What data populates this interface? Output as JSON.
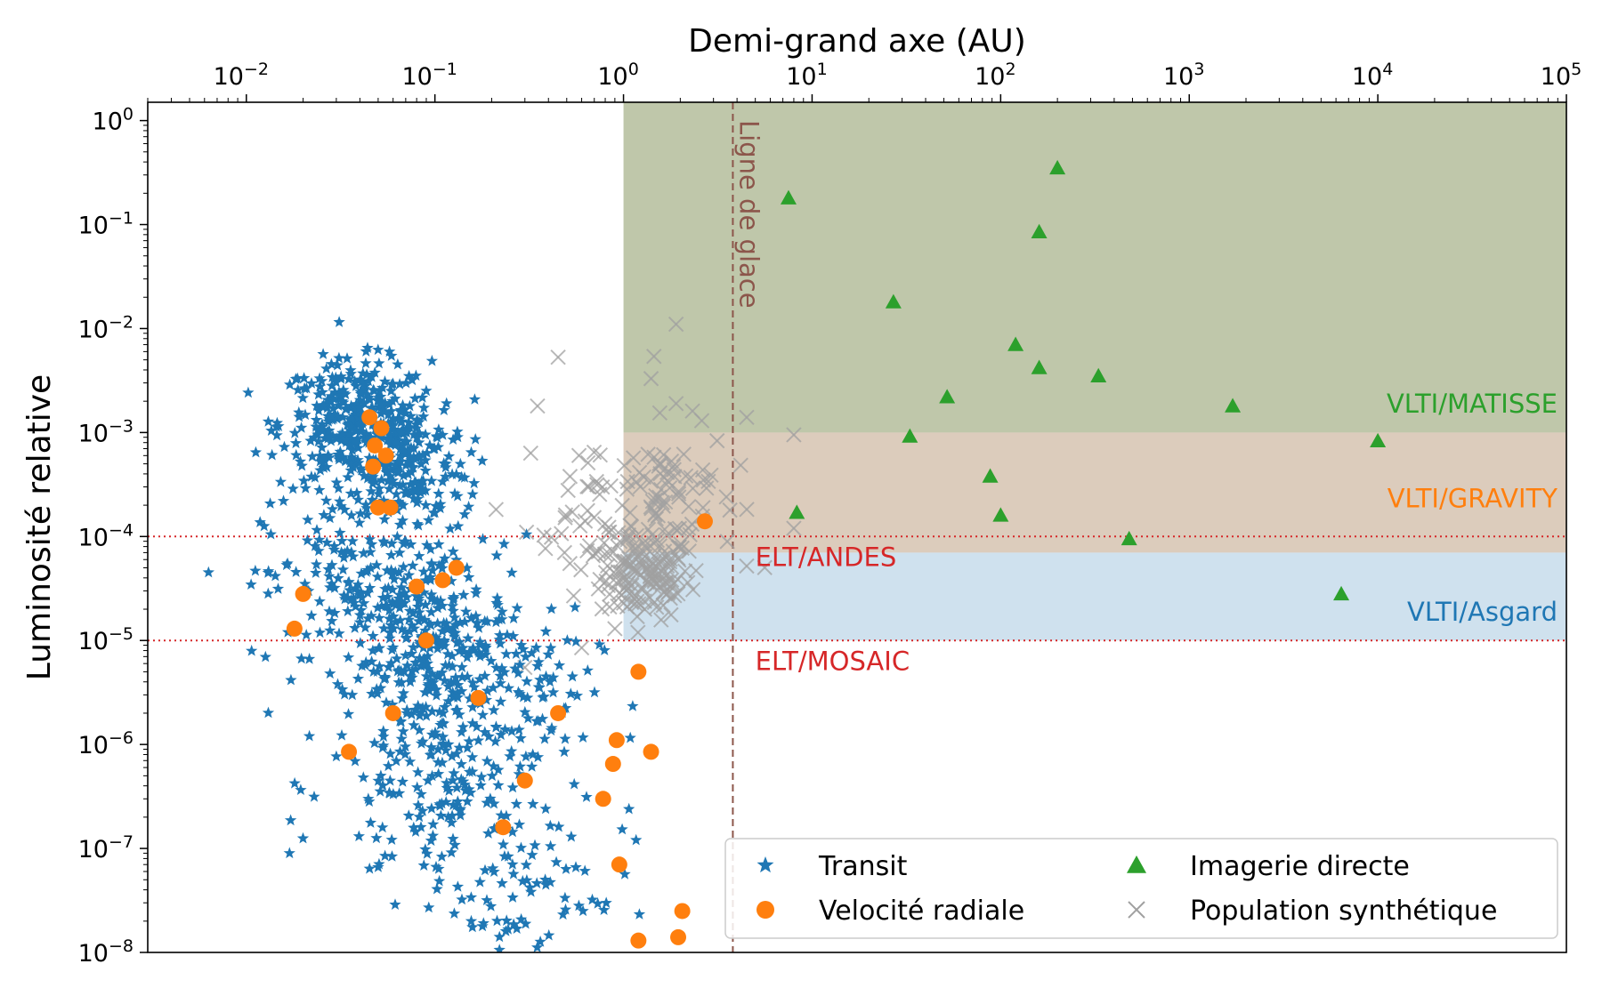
{
  "chart_data": {
    "type": "scatter",
    "title": "",
    "xlabel": "Demi-grand axe (AU)",
    "ylabel": "Luminosité relative",
    "xscale": "log",
    "yscale": "log",
    "xlim": [
      0.003,
      100000
    ],
    "ylim": [
      1e-08,
      1.5
    ],
    "x_axis_position": "top",
    "grid": false,
    "x_ticks": [
      {
        "value": 0.01,
        "base": "10",
        "exp": "−2"
      },
      {
        "value": 0.1,
        "base": "10",
        "exp": "−1"
      },
      {
        "value": 1,
        "base": "10",
        "exp": "0"
      },
      {
        "value": 10,
        "base": "10",
        "exp": "1"
      },
      {
        "value": 100,
        "base": "10",
        "exp": "2"
      },
      {
        "value": 1000,
        "base": "10",
        "exp": "3"
      },
      {
        "value": 10000,
        "base": "10",
        "exp": "4"
      },
      {
        "value": 100000,
        "base": "10",
        "exp": "5"
      }
    ],
    "y_ticks": [
      {
        "value": 1,
        "base": "10",
        "exp": "0"
      },
      {
        "value": 0.1,
        "base": "10",
        "exp": "−1"
      },
      {
        "value": 0.01,
        "base": "10",
        "exp": "−2"
      },
      {
        "value": 0.001,
        "base": "10",
        "exp": "−3"
      },
      {
        "value": 0.0001,
        "base": "10",
        "exp": "−4"
      },
      {
        "value": 1e-05,
        "base": "10",
        "exp": "−5"
      },
      {
        "value": 1e-06,
        "base": "10",
        "exp": "−6"
      },
      {
        "value": 1e-07,
        "base": "10",
        "exp": "−7"
      },
      {
        "value": 1e-08,
        "base": "10",
        "exp": "−8"
      }
    ],
    "regions": [
      {
        "label": "VLTI/MATISSE",
        "x_min": 1,
        "x_max": 100000,
        "y_min": 0.001,
        "y_max": 1.5,
        "fill": "#7f8f55",
        "opacity": 0.5,
        "label_color": "#2ca02c",
        "label_anchor": [
          0.45,
          0.00155
        ]
      },
      {
        "label": "VLTI/GRAVITY",
        "x_min": 1,
        "x_max": 100000,
        "y_min": 7e-05,
        "y_max": 0.001,
        "fill": "#b9997a",
        "opacity": 0.5,
        "label_color": "#ff7f0e",
        "label_anchor": [
          0.45,
          0.00019
        ]
      },
      {
        "label": "VLTI/Asgard",
        "x_min": 1,
        "x_max": 100000,
        "y_min": 1e-05,
        "y_max": 7e-05,
        "fill": "#a8c8e0",
        "opacity": 0.55,
        "label_color": "#1f77b4",
        "label_anchor": [
          0.45,
          1.55e-05
        ]
      }
    ],
    "hlines": [
      {
        "label": "ELT/ANDES",
        "y": 0.0001,
        "color": "#d62728",
        "label_x": 5,
        "label_y": 5.2e-05
      },
      {
        "label": "ELT/MOSAIC",
        "y": 1e-05,
        "color": "#d62728",
        "label_x": 5,
        "label_y": 5.2e-06
      }
    ],
    "vlines": [
      {
        "label": "Ligne de glace",
        "x": 3.8,
        "color": "#8c564b"
      }
    ],
    "series": [
      {
        "name": "Transit",
        "marker": "star",
        "color": "#1f77b4",
        "clusters": [
          {
            "x_center": 0.038,
            "y_center": 0.0012,
            "x_spread": 0.2,
            "y_spread": 0.3,
            "count": 340
          },
          {
            "x_center": 0.07,
            "y_center": 0.0005,
            "x_spread": 0.17,
            "y_spread": 0.3,
            "count": 160
          },
          {
            "x_center": 0.05,
            "y_center": 3e-05,
            "x_spread": 0.3,
            "y_spread": 0.45,
            "count": 230
          },
          {
            "x_center": 0.11,
            "y_center": 6e-06,
            "x_spread": 0.25,
            "y_spread": 0.4,
            "count": 240
          },
          {
            "x_center": 0.12,
            "y_center": 4e-07,
            "x_spread": 0.32,
            "y_spread": 0.55,
            "count": 190
          },
          {
            "x_center": 0.3,
            "y_center": 4e-08,
            "x_spread": 0.28,
            "y_spread": 0.4,
            "count": 70
          },
          {
            "x_center": 0.3,
            "y_center": 3e-06,
            "x_spread": 0.2,
            "y_spread": 0.4,
            "count": 40
          }
        ]
      },
      {
        "name": "Velocité radiale",
        "marker": "circle",
        "color": "#ff7f0e",
        "points": [
          [
            0.045,
            0.0014
          ],
          [
            0.052,
            0.0011
          ],
          [
            0.048,
            0.00075
          ],
          [
            0.055,
            0.0006
          ],
          [
            0.047,
            0.00047
          ],
          [
            0.05,
            0.00019
          ],
          [
            0.058,
            0.00019
          ],
          [
            0.02,
            2.8e-05
          ],
          [
            0.018,
            1.3e-05
          ],
          [
            0.08,
            3.3e-05
          ],
          [
            0.11,
            3.8e-05
          ],
          [
            0.13,
            5e-05
          ],
          [
            0.09,
            1e-05
          ],
          [
            0.06,
            2e-06
          ],
          [
            0.035,
            8.5e-07
          ],
          [
            0.17,
            2.8e-06
          ],
          [
            0.45,
            2e-06
          ],
          [
            0.3,
            4.5e-07
          ],
          [
            0.23,
            1.6e-07
          ],
          [
            0.92,
            1.1e-06
          ],
          [
            0.88,
            6.5e-07
          ],
          [
            1.4,
            8.5e-07
          ],
          [
            0.78,
            3e-07
          ],
          [
            0.95,
            7e-08
          ],
          [
            1.2,
            5e-06
          ],
          [
            2.7,
            0.00014
          ],
          [
            2.05,
            2.5e-08
          ],
          [
            1.2,
            1.3e-08
          ],
          [
            1.95,
            1.4e-08
          ]
        ]
      },
      {
        "name": "Imagerie directe",
        "marker": "triangle",
        "color": "#2ca02c",
        "points": [
          [
            7.5,
            0.18
          ],
          [
            200,
            0.35
          ],
          [
            160,
            0.085
          ],
          [
            27,
            0.018
          ],
          [
            120,
            0.007
          ],
          [
            160,
            0.0042
          ],
          [
            330,
            0.0035
          ],
          [
            52,
            0.0022
          ],
          [
            1700,
            0.0018
          ],
          [
            33,
            0.00092
          ],
          [
            10000,
            0.00083
          ],
          [
            88,
            0.00038
          ],
          [
            8.3,
            0.00017
          ],
          [
            100,
            0.00016
          ],
          [
            480,
            9.5e-05
          ],
          [
            6400,
            2.8e-05
          ]
        ]
      },
      {
        "name": "Population synthétique",
        "marker": "x",
        "color": "#a0a0a0",
        "clusters": [
          {
            "x_center": 1.3,
            "y_center": 4e-05,
            "x_spread": 0.12,
            "y_spread": 0.2,
            "count": 130
          },
          {
            "x_center": 1.6,
            "y_center": 0.00025,
            "x_spread": 0.2,
            "y_spread": 0.35,
            "count": 90
          },
          {
            "x_center": 0.7,
            "y_center": 0.00015,
            "x_spread": 0.18,
            "y_spread": 0.35,
            "count": 40
          }
        ],
        "points": [
          [
            0.45,
            0.0053
          ],
          [
            0.35,
            0.0018
          ],
          [
            1.9,
            0.011
          ],
          [
            1.45,
            0.0054
          ],
          [
            1.4,
            0.0033
          ],
          [
            4.5,
            0.0014
          ],
          [
            8,
            0.00095
          ],
          [
            4.5,
            5.2e-05
          ],
          [
            8,
            0.00012
          ],
          [
            2.6,
            0.0013
          ],
          [
            1.9,
            0.0019
          ],
          [
            0.3,
            5.5e-06
          ],
          [
            0.6,
            8.5e-06
          ],
          [
            0.9,
            1.3e-05
          ]
        ]
      }
    ],
    "legend": {
      "position": "lower-right",
      "ncol": 2,
      "entries": [
        "Transit",
        "Velocité radiale",
        "Imagerie directe",
        "Population synthétique"
      ]
    }
  }
}
